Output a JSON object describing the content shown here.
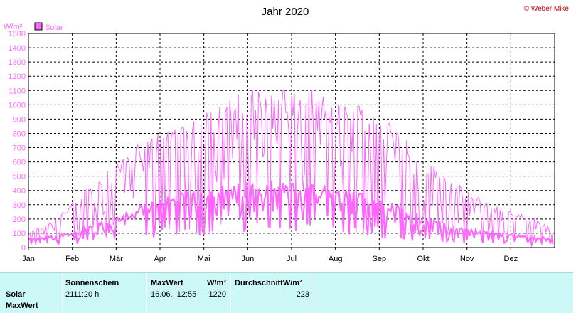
{
  "chart_data": {
    "type": "line",
    "title": "Jahr 2020",
    "copyright": "© Weber Mike",
    "ylabel": "W/m²",
    "ylim": [
      0,
      1500
    ],
    "yticks": [
      0,
      100,
      200,
      300,
      400,
      500,
      600,
      700,
      800,
      900,
      1000,
      1100,
      1200,
      1300,
      1400,
      1500
    ],
    "xlabels": [
      "Jan",
      "Feb",
      "Mär",
      "Apr",
      "Mai",
      "Jun",
      "Jul",
      "Aug",
      "Sep",
      "Okt",
      "Nov",
      "Dez"
    ],
    "grid": true,
    "legend": "top-left",
    "series": [
      {
        "name": "Solar",
        "color": "#ff66ff",
        "x_unit": "month",
        "max_envelope": [
          [
            0,
            100
          ],
          [
            0.5,
            180
          ],
          [
            1,
            300
          ],
          [
            1.5,
            450
          ],
          [
            2,
            600
          ],
          [
            2.5,
            700
          ],
          [
            3,
            780
          ],
          [
            3.5,
            850
          ],
          [
            4,
            900
          ],
          [
            4.5,
            1000
          ],
          [
            5,
            1050
          ],
          [
            5.5,
            1100
          ],
          [
            6,
            1080
          ],
          [
            6.5,
            1050
          ],
          [
            7,
            1000
          ],
          [
            7.5,
            980
          ],
          [
            8,
            900
          ],
          [
            8.5,
            780
          ],
          [
            9,
            600
          ],
          [
            9.5,
            500
          ],
          [
            10,
            380
          ],
          [
            10.5,
            300
          ],
          [
            11,
            250
          ],
          [
            11.5,
            200
          ],
          [
            12,
            120
          ]
        ],
        "mean_envelope": [
          [
            0,
            60
          ],
          [
            1,
            100
          ],
          [
            2,
            200
          ],
          [
            3,
            330
          ],
          [
            4,
            380
          ],
          [
            5,
            420
          ],
          [
            5.5,
            440
          ],
          [
            6,
            420
          ],
          [
            7,
            380
          ],
          [
            8,
            330
          ],
          [
            9,
            200
          ],
          [
            10,
            120
          ],
          [
            11,
            90
          ],
          [
            12,
            60
          ]
        ]
      }
    ]
  },
  "panel": {
    "row_label_solar": "Solar",
    "row_label_max": "MaxWert",
    "sunshine_header": "Sonnenschein",
    "sunshine_value": "2111:20 h",
    "max_header": "MaxWert",
    "max_unit": "W/m²",
    "max_datetime": "16.06.  12:55",
    "max_value": "1220",
    "avg_header": "DurchschnittW/m²",
    "avg_value": "223"
  },
  "colors": {
    "line": "#ff66ff",
    "panel_bg": "#cdf8f8",
    "copyright": "#cc0000"
  }
}
